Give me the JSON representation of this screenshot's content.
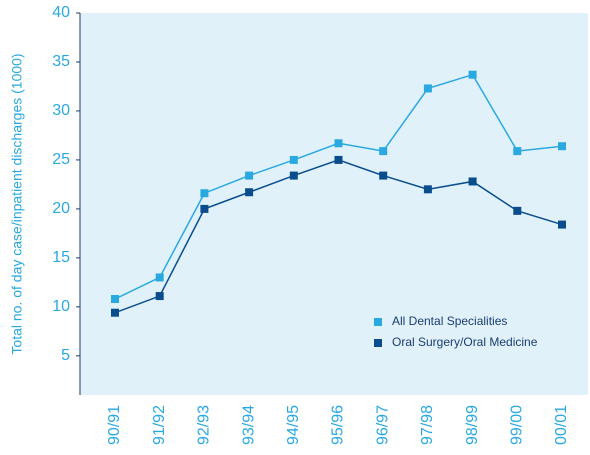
{
  "chart_data": {
    "type": "line",
    "y_label": "Total no. of day case/inpatient discharges (1000)",
    "categories": [
      "90/91",
      "91/92",
      "92/93",
      "93/94",
      "94/95",
      "95/96",
      "96/97",
      "97/98",
      "98/99",
      "99/00",
      "00/01"
    ],
    "series": [
      {
        "name": "All Dental Specialities",
        "color": "#29a9e0",
        "values": [
          10.8,
          13.0,
          21.6,
          23.4,
          25.0,
          26.7,
          25.9,
          32.3,
          33.7,
          25.9,
          26.4
        ]
      },
      {
        "name": "Oral Surgery/Oral Medicine",
        "color": "#0a4d8c",
        "values": [
          9.4,
          11.1,
          20.0,
          21.7,
          23.4,
          25.0,
          23.4,
          22.0,
          22.8,
          19.8,
          18.4
        ]
      }
    ],
    "ylim": [
      1,
      40
    ],
    "yticks": [
      5,
      10,
      15,
      20,
      25,
      30,
      35,
      40
    ],
    "plot_background": "#e0f1fa",
    "text_color": "#29a9e0"
  }
}
